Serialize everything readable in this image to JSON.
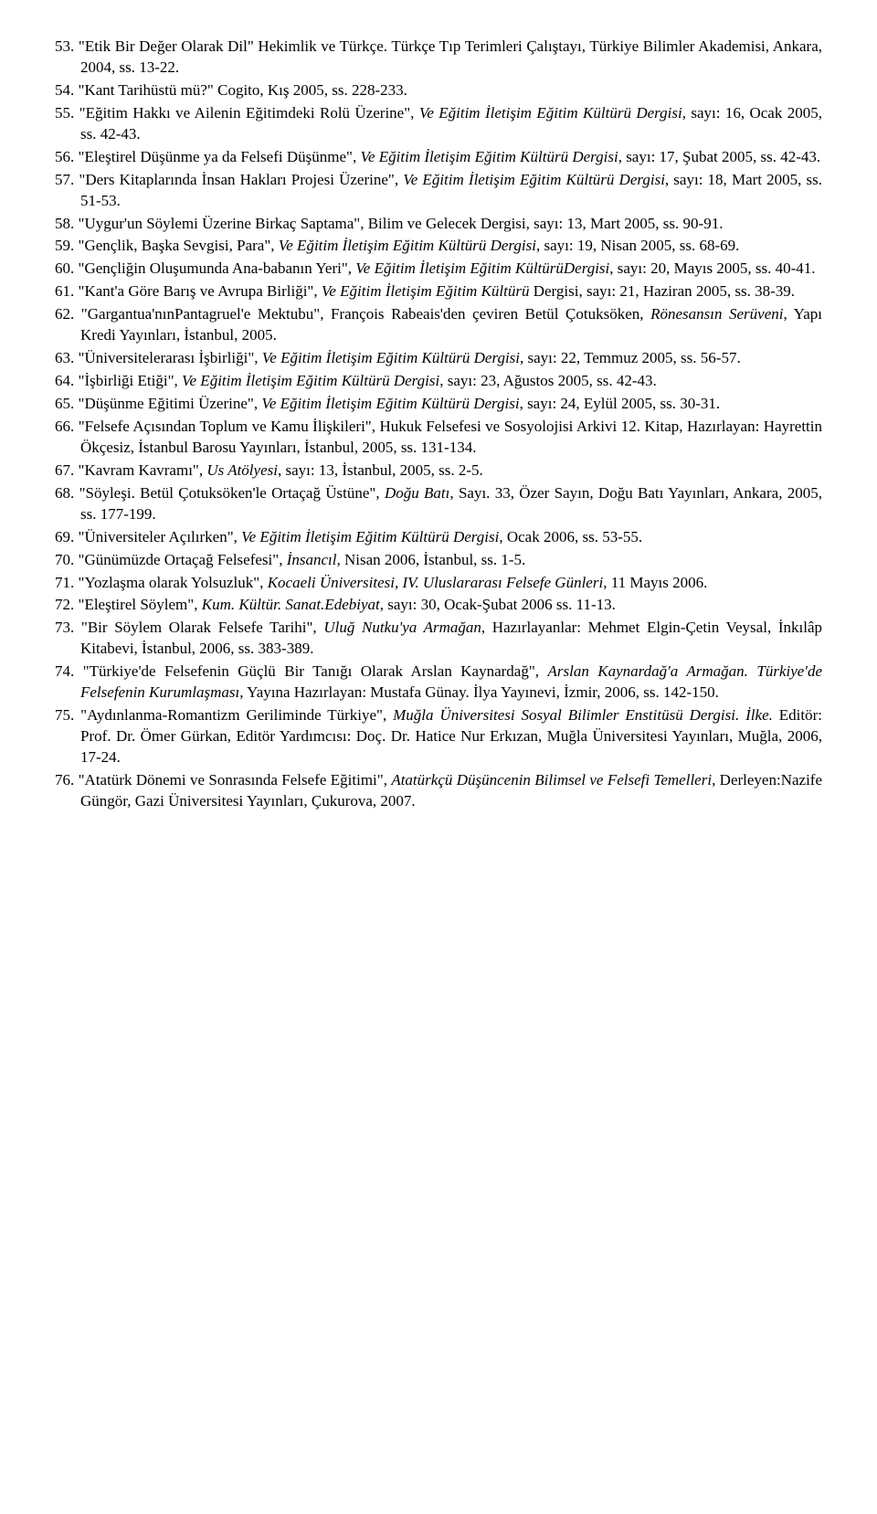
{
  "entries": [
    {
      "num": "53.",
      "html": "\"Etik Bir Değer Olarak Dil\" Hekimlik ve Türkçe. Türkçe Tıp Terimleri Çalıştayı, Türkiye Bilimler Akademisi, Ankara, 2004, ss. 13-22."
    },
    {
      "num": "54.",
      "html": "\"Kant Tarihüstü mü?\" Cogito, Kış 2005, ss. 228-233."
    },
    {
      "num": "55.",
      "html": "\"Eğitim Hakkı ve Ailenin Eğitimdeki Rolü Üzerine\", <span class=\"italic\">Ve Eğitim İletişim Eğitim Kültürü Dergisi</span>, sayı: 16, Ocak 2005, ss. 42-43."
    },
    {
      "num": "56.",
      "html": "\"Eleştirel Düşünme ya da Felsefi Düşünme\", <span class=\"italic\">Ve Eğitim İletişim Eğitim Kültürü Dergisi</span>, sayı: 17, Şubat 2005, ss. 42-43."
    },
    {
      "num": "57.",
      "html": "\"Ders Kitaplarında İnsan Hakları Projesi Üzerine\", <span class=\"italic\">Ve Eğitim İletişim Eğitim Kültürü Dergisi</span>, sayı: 18, Mart 2005, ss. 51-53."
    },
    {
      "num": "58.",
      "html": "\"Uygur'un Söylemi Üzerine Birkaç Saptama\", Bilim ve Gelecek Dergisi, sayı: 13, Mart 2005, ss. 90-91."
    },
    {
      "num": "59.",
      "html": "\"Gençlik, Başka Sevgisi, Para\", <span class=\"italic\">Ve Eğitim İletişim Eğitim Kültürü Dergisi</span>, sayı: 19, Nisan 2005, ss. 68-69."
    },
    {
      "num": "60.",
      "html": "\"Gençliğin Oluşumunda Ana-babanın Yeri\", <span class=\"italic\">Ve Eğitim İletişim Eğitim KültürüDergisi</span>, sayı: 20, Mayıs 2005, ss. 40-41."
    },
    {
      "num": "61.",
      "html": "\"Kant'a Göre Barış ve Avrupa Birliği\", <span class=\"italic\">Ve Eğitim İletişim Eğitim Kültürü</span> Dergisi, sayı: 21, Haziran 2005, ss. 38-39."
    },
    {
      "num": "62.",
      "html": "\"Gargantua'nınPantagruel'e Mektubu\", François Rabeais'den çeviren Betül Çotuksöken, <span class=\"italic\">Rönesansın Serüveni</span>, Yapı Kredi Yayınları, İstanbul, 2005."
    },
    {
      "num": "63.",
      "html": "\"Üniversitelerarası İşbirliği\", <span class=\"italic\">Ve Eğitim İletişim Eğitim Kültürü Dergisi</span>, sayı: 22, Temmuz 2005, ss. 56-57."
    },
    {
      "num": "64.",
      "html": "\"İşbirliği Etiği\", <span class=\"italic\">Ve Eğitim İletişim Eğitim Kültürü Dergisi</span>, sayı: 23, Ağustos 2005, ss. 42-43."
    },
    {
      "num": "65.",
      "html": "\"Düşünme Eğitimi Üzerine\", <span class=\"italic\">Ve Eğitim İletişim Eğitim Kültürü Dergisi</span>, sayı: 24, Eylül 2005, ss. 30-31."
    },
    {
      "num": "66.",
      "html": "\"Felsefe Açısından Toplum ve Kamu İlişkileri\", Hukuk Felsefesi ve Sosyolojisi Arkivi 12. Kitap, Hazırlayan: Hayrettin Ökçesiz, İstanbul Barosu Yayınları, İstanbul, 2005, ss. 131-134."
    },
    {
      "num": "67.",
      "html": "\"Kavram Kavramı\", <span class=\"italic\">Us Atölyesi</span>, sayı: 13, İstanbul, 2005, ss. 2-5."
    },
    {
      "num": "68.",
      "html": "\"Söyleşi. Betül Çotuksöken'le Ortaçağ Üstüne\", <span class=\"italic\">Doğu Batı</span>, Sayı. 33, Özer Sayın, Doğu Batı Yayınları, Ankara, 2005, ss. 177-199."
    },
    {
      "num": "69.",
      "html": "\"Üniversiteler Açılırken\", <span class=\"italic\">Ve Eğitim İletişim Eğitim Kültürü Dergisi</span>, Ocak 2006, ss. 53-55."
    },
    {
      "num": "70.",
      "html": "\"Günümüzde Ortaçağ Felsefesi\", <span class=\"italic\">İnsancıl</span>, Nisan 2006, İstanbul, ss. 1-5."
    },
    {
      "num": "71.",
      "html": "\"Yozlaşma olarak Yolsuzluk\", <span class=\"italic\">Kocaeli Üniversitesi, IV. Uluslararası Felsefe Günleri</span>, 11 Mayıs 2006."
    },
    {
      "num": "72.",
      "html": "\"Eleştirel Söylem\", <span class=\"italic\">Kum. Kültür. Sanat.Edebiyat</span>, sayı: 30, Ocak-Şubat 2006 ss. 11-13."
    },
    {
      "num": "73.",
      "html": "\"Bir Söylem Olarak Felsefe Tarihi\", <span class=\"italic\">Uluğ Nutku'ya Armağan</span>, Hazırlayanlar: Mehmet Elgin-Çetin Veysal, İnkılâp Kitabevi, İstanbul, 2006, ss. 383-389."
    },
    {
      "num": "74.",
      "html": "\"Türkiye'de Felsefenin Güçlü Bir Tanığı Olarak Arslan Kaynardağ\", <span class=\"italic\">Arslan Kaynardağ'a Armağan. Türkiye'de Felsefenin Kurumlaşması</span>, Yayına Hazırlayan: Mustafa Günay. İlya Yayınevi, İzmir, 2006, ss. 142-150."
    },
    {
      "num": "75.",
      "html": "\"Aydınlanma-Romantizm Geriliminde Türkiye\", <span class=\"italic\">Muğla Üniversitesi Sosyal Bilimler Enstitüsü Dergisi. İlke.</span> Editör: Prof. Dr. Ömer Gürkan, Editör Yardımcısı: Doç. Dr. Hatice Nur Erkızan, Muğla Üniversitesi Yayınları, Muğla, 2006, 17-24."
    },
    {
      "num": "76.",
      "html": "\"Atatürk Dönemi ve Sonrasında Felsefe Eğitimi\", <span class=\"italic\">Atatürkçü Düşüncenin Bilimsel ve Felsefi Temelleri</span>, Derleyen:Nazife Güngör, Gazi Üniversitesi Yayınları, Çukurova, 2007."
    }
  ]
}
